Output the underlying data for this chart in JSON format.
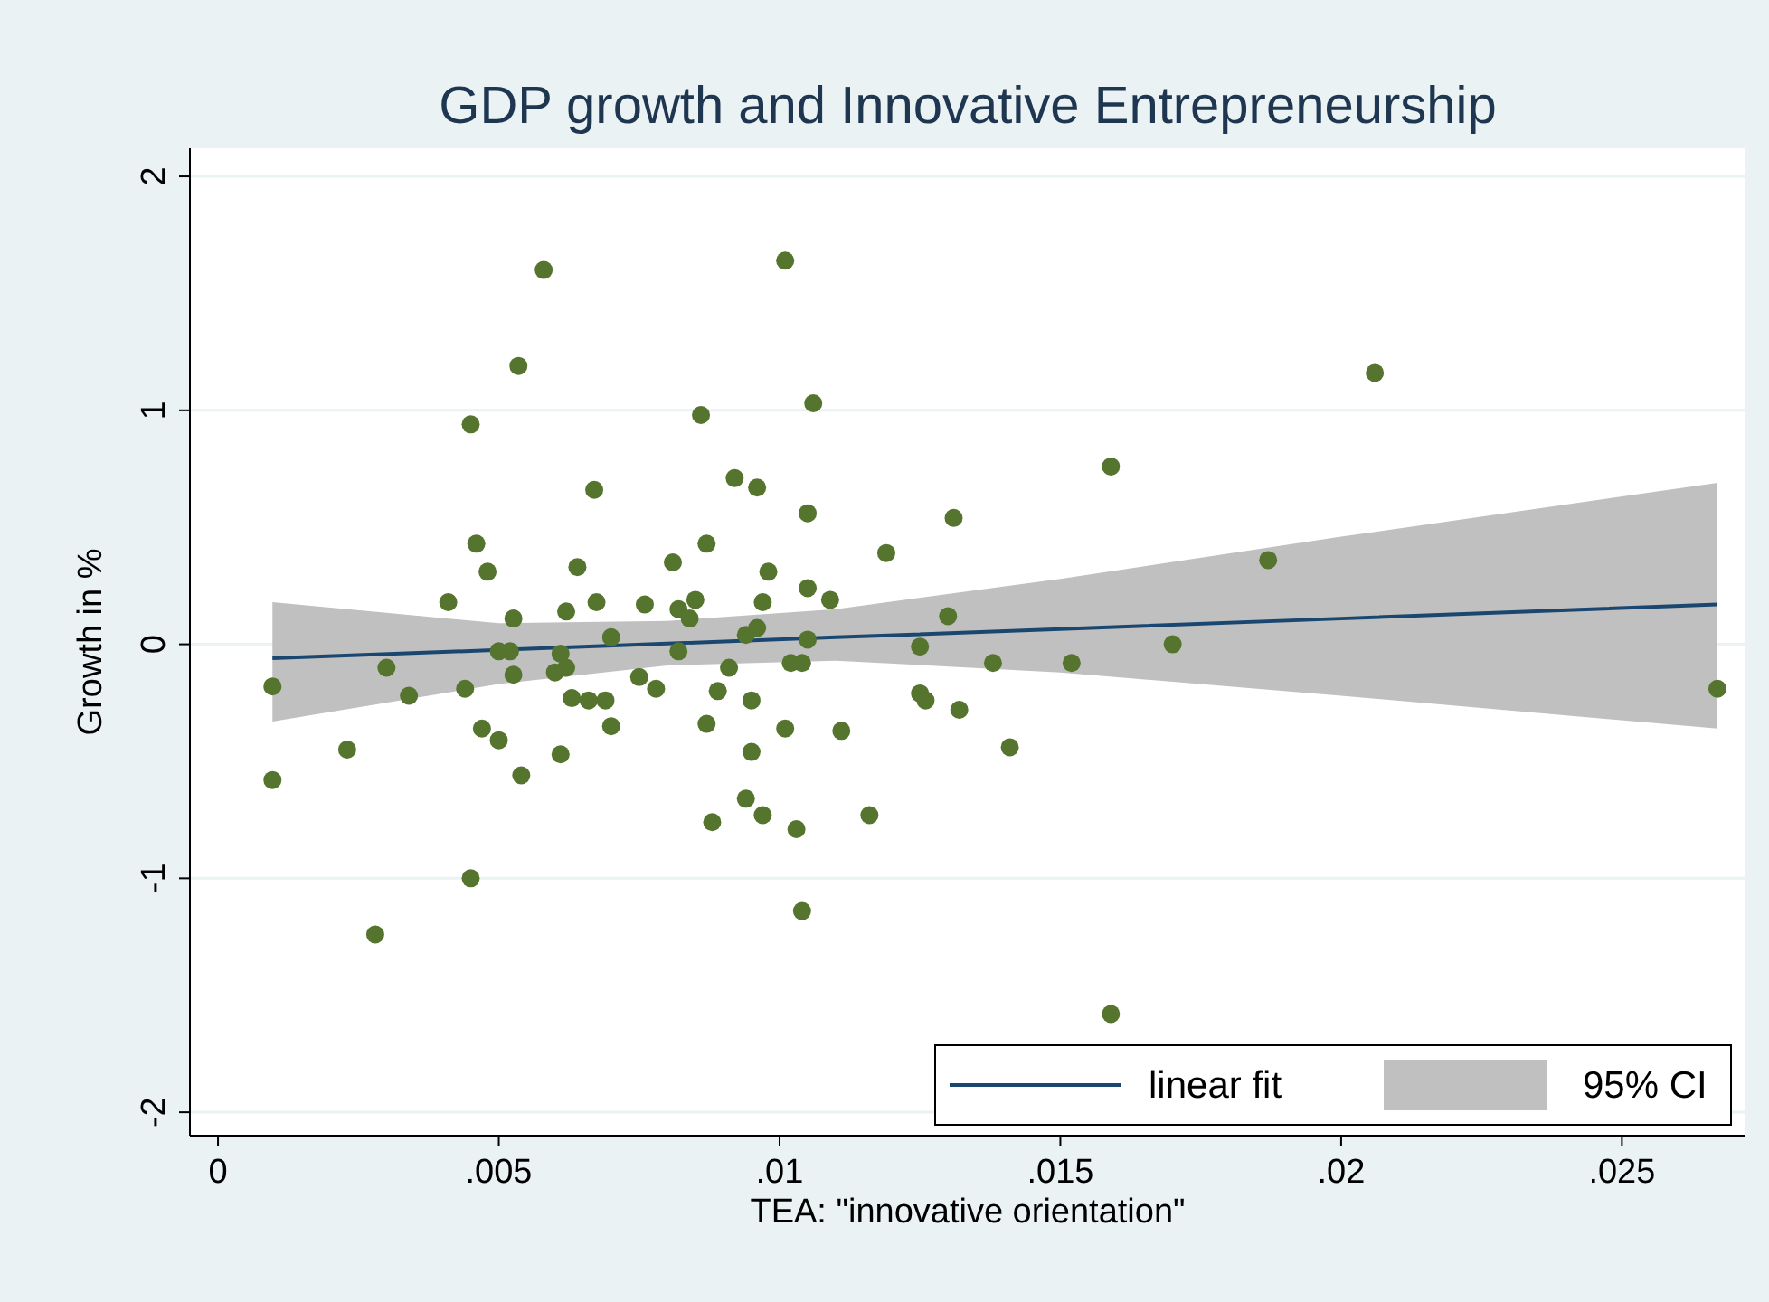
{
  "chart_data": {
    "type": "scatter",
    "title": "GDP growth and Innovative Entrepreneurship",
    "xlabel": "TEA: \"innovative orientation\"",
    "ylabel": "Growth in %",
    "xlim": [
      -0.0005,
      0.0272
    ],
    "ylim": [
      -2.1,
      2.12
    ],
    "xticks": [
      {
        "value": 0,
        "label": "0"
      },
      {
        "value": 0.005,
        "label": ".005"
      },
      {
        "value": 0.01,
        "label": ".01"
      },
      {
        "value": 0.015,
        "label": ".015"
      },
      {
        "value": 0.02,
        "label": ".02"
      },
      {
        "value": 0.025,
        "label": ".025"
      }
    ],
    "yticks": [
      -2,
      -1,
      0,
      1,
      2
    ],
    "grid": "y",
    "legend": "bottom right",
    "annotations": [
      "95% CI"
    ],
    "series": [
      {
        "type": "line",
        "name": "linear fit",
        "color": "#1a476f",
        "marker": "none",
        "x": [
          0.00097,
          0.005,
          0.008,
          0.011,
          0.015,
          0.02,
          0.0267
        ],
        "values": [
          -0.06,
          -0.024,
          0.003,
          0.03,
          0.065,
          0.11,
          0.17
        ],
        "lower": [
          -0.33,
          -0.17,
          -0.09,
          -0.07,
          -0.12,
          -0.22,
          -0.36
        ],
        "upper": [
          0.18,
          0.09,
          0.1,
          0.15,
          0.28,
          0.46,
          0.69
        ]
      },
      {
        "color": "#55752f",
        "marker": "circle",
        "x": [
          0.0058,
          0.00535,
          0.0045,
          0.0067,
          0.0046,
          0.0048,
          0.0064,
          0.0041,
          0.00526,
          0.0062,
          0.00674,
          0.007,
          0.005,
          0.0052,
          0.0061,
          0.006,
          0.0062,
          0.00526,
          0.00097,
          0.003,
          0.0034,
          0.0044,
          0.0063,
          0.0066,
          0.0069,
          0.007,
          0.0047,
          0.005,
          0.0023,
          0.0061,
          0.00097,
          0.0054,
          0.0045,
          0.0028,
          0.0101,
          0.0106,
          0.0086,
          0.0092,
          0.0096,
          0.0105,
          0.0131,
          0.0119,
          0.0081,
          0.0087,
          0.0098,
          0.0105,
          0.0109,
          0.0076,
          0.0082,
          0.0085,
          0.0084,
          0.0097,
          0.0096,
          0.0094,
          0.0105,
          0.013,
          0.0082,
          0.0125,
          0.0091,
          0.0102,
          0.0104,
          0.0138,
          0.0075,
          0.0078,
          0.0089,
          0.0095,
          0.0125,
          0.0126,
          0.0132,
          0.0087,
          0.0101,
          0.0111,
          0.0141,
          0.0095,
          0.0094,
          0.0088,
          0.0097,
          0.0103,
          0.0116,
          0.0104,
          0.0206,
          0.0159,
          0.0187,
          0.017,
          0.0152,
          0.0267,
          0.0159
        ],
        "values": [
          1.6,
          1.19,
          0.94,
          0.66,
          0.43,
          0.31,
          0.33,
          0.18,
          0.11,
          0.14,
          0.18,
          0.03,
          -0.03,
          -0.03,
          -0.04,
          -0.12,
          -0.1,
          -0.13,
          -0.18,
          -0.1,
          -0.22,
          -0.19,
          -0.23,
          -0.24,
          -0.24,
          -0.35,
          -0.36,
          -0.41,
          -0.45,
          -0.47,
          -0.58,
          -0.56,
          -1,
          -1.24,
          1.64,
          1.03,
          0.98,
          0.71,
          0.67,
          0.56,
          0.54,
          0.39,
          0.35,
          0.43,
          0.31,
          0.24,
          0.19,
          0.17,
          0.15,
          0.19,
          0.11,
          0.18,
          0.07,
          0.04,
          0.02,
          0.12,
          -0.03,
          -0.01,
          -0.1,
          -0.08,
          -0.08,
          -0.08,
          -0.14,
          -0.19,
          -0.2,
          -0.24,
          -0.21,
          -0.24,
          -0.28,
          -0.34,
          -0.36,
          -0.37,
          -0.44,
          -0.46,
          -0.66,
          -0.76,
          -0.73,
          -0.79,
          -0.73,
          -1.14,
          1.16,
          0.76,
          0.36,
          0,
          -0.08,
          -0.19,
          -1.58
        ]
      }
    ]
  }
}
